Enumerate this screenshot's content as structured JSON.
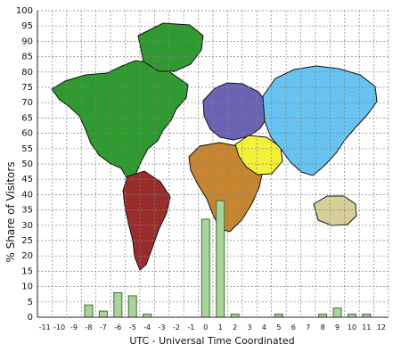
{
  "chart_data": {
    "type": "bar",
    "title": "",
    "xlabel": "UTC - Universal Time Coordinated",
    "ylabel": "% Share of Visitors",
    "ylim": [
      0,
      100
    ],
    "ytick_step": 5,
    "grid": true,
    "legend": "none",
    "categories": [
      "-11",
      "-10",
      "-9",
      "-8",
      "-7",
      "-6",
      "-5",
      "-4",
      "-3",
      "-2",
      "-1",
      "0",
      "1",
      "2",
      "3",
      "4",
      "5",
      "6",
      "7",
      "8",
      "9",
      "10",
      "11",
      "12"
    ],
    "series": [
      {
        "values": [
          0,
          0,
          0,
          4,
          2,
          8,
          7,
          1,
          0,
          0,
          0,
          32,
          38,
          1,
          0,
          0,
          1,
          0,
          0,
          1,
          3,
          1,
          1,
          0
        ]
      }
    ],
    "bar_color": "#a9d39b",
    "bar_stroke": "#3e6f35",
    "background_map_colors": {
      "north_america": "#2f9a2f",
      "south_america": "#9b2c2c",
      "africa": "#c8852f",
      "europe": "#6a63b5",
      "middle_east": "#f2f23a",
      "asia": "#67c4f2",
      "australia": "#d8cf98"
    }
  }
}
